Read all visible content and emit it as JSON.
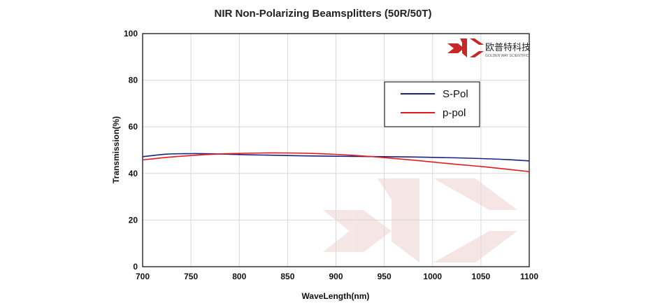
{
  "chart_data": {
    "type": "line",
    "title": "NIR Non-Polarizing Beamsplitters  (50R/50T)",
    "xlabel": "WaveLength(nm)",
    "ylabel": "Transmission(%)",
    "xlim": [
      700,
      1100
    ],
    "ylim": [
      0,
      100
    ],
    "xticks": [
      700,
      750,
      800,
      850,
      900,
      950,
      1000,
      1050,
      1100
    ],
    "yticks": [
      0,
      20,
      40,
      60,
      80,
      100
    ],
    "grid": true,
    "legend_position": "upper-right",
    "series": [
      {
        "name": "S-Pol",
        "color": "#1a237e",
        "x": [
          700,
          725,
          750,
          775,
          800,
          825,
          850,
          875,
          900,
          925,
          950,
          975,
          1000,
          1025,
          1050,
          1075,
          1100
        ],
        "y": [
          47.2,
          48.3,
          48.5,
          48.4,
          48.1,
          47.9,
          47.7,
          47.5,
          47.4,
          47.3,
          47.2,
          47.1,
          46.9,
          46.7,
          46.4,
          46.0,
          45.4
        ]
      },
      {
        "name": "p-pol",
        "color": "#e8191c",
        "x": [
          700,
          725,
          750,
          775,
          800,
          825,
          850,
          875,
          900,
          925,
          950,
          975,
          1000,
          1025,
          1050,
          1075,
          1100
        ],
        "y": [
          45.8,
          46.9,
          47.7,
          48.3,
          48.6,
          48.8,
          48.8,
          48.6,
          48.2,
          47.6,
          46.8,
          45.9,
          44.9,
          43.9,
          43.0,
          41.9,
          40.8
        ]
      }
    ]
  },
  "logo": {
    "name_cn": "欧普特科技",
    "name_en": "GOLDEN WAY SCIENTIFIC",
    "color": "#c62828"
  },
  "watermark_color": "#f3dede"
}
